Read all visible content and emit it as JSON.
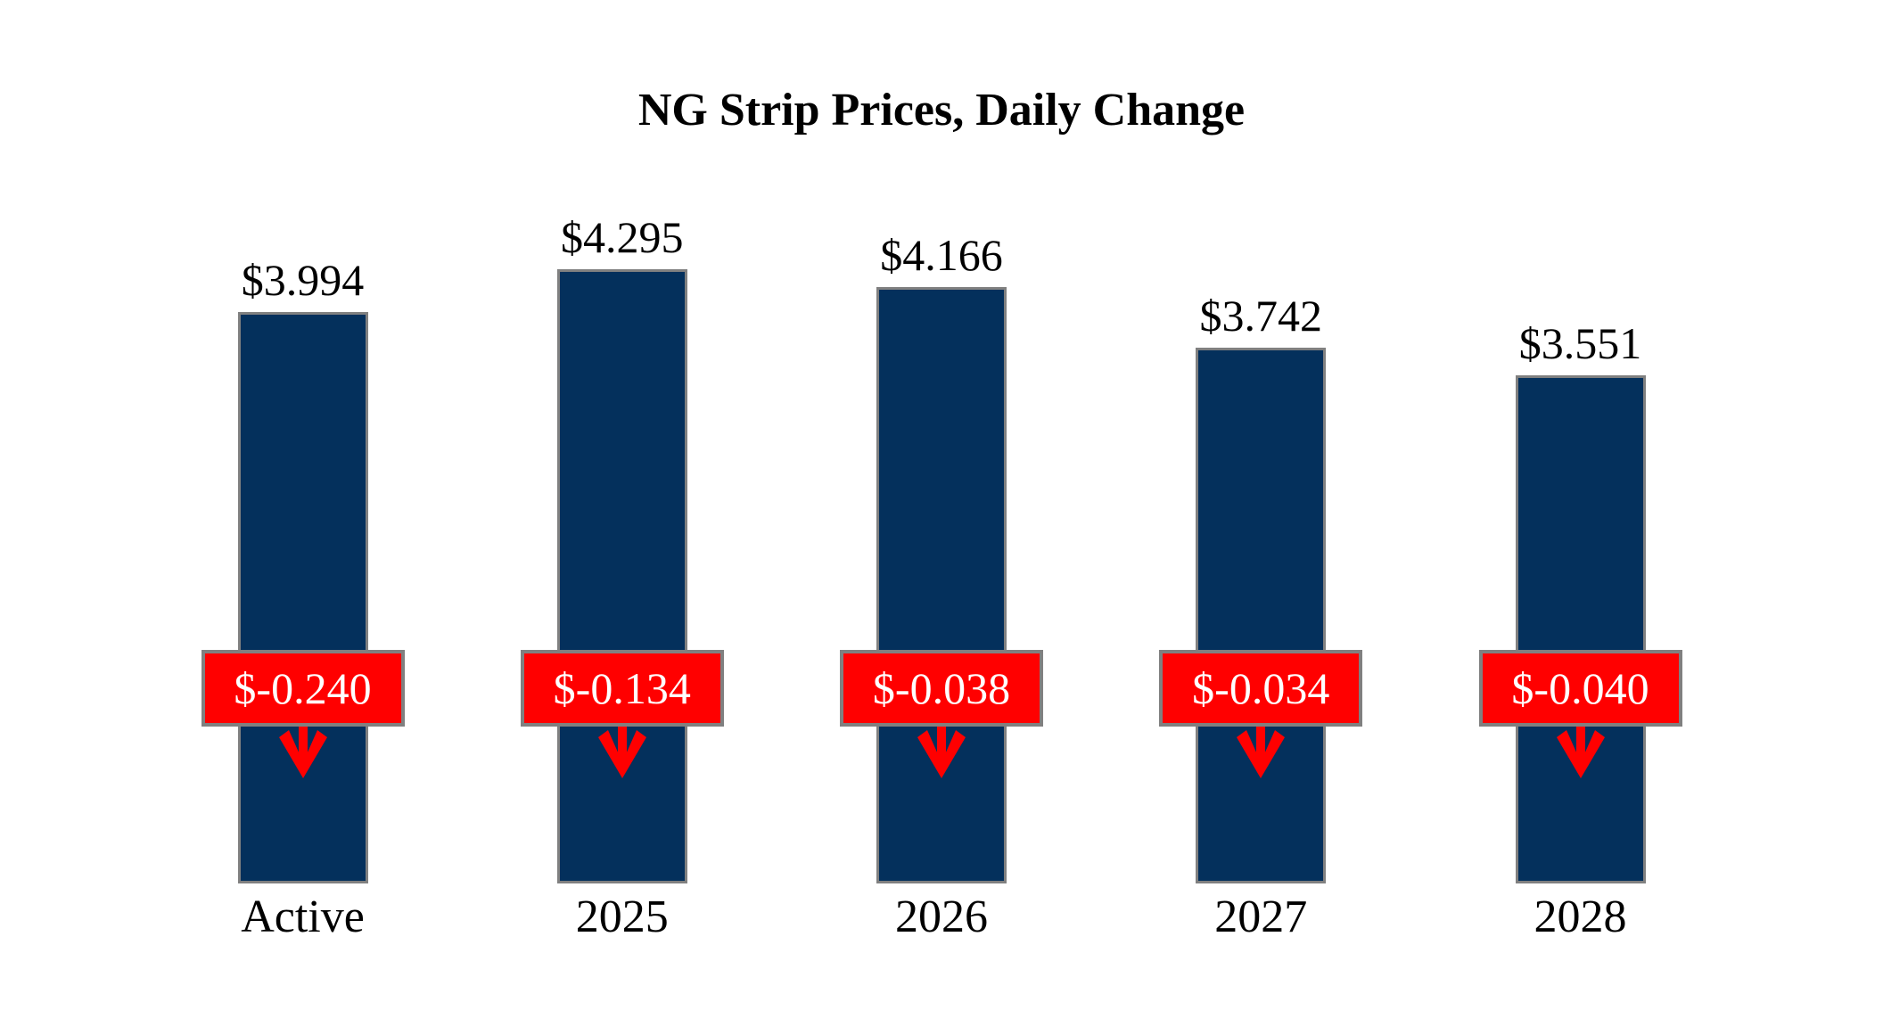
{
  "title": "NG Strip Prices, Daily Change",
  "chart_data": {
    "type": "bar",
    "title": "NG Strip Prices, Daily Change",
    "xlabel": "",
    "ylabel": "",
    "categories": [
      "Active",
      "2025",
      "2026",
      "2027",
      "2028"
    ],
    "values": [
      3.994,
      4.295,
      4.166,
      3.742,
      3.551
    ],
    "value_labels": [
      "$3.994",
      "$4.295",
      "$4.166",
      "$3.742",
      "$3.551"
    ],
    "daily_changes": [
      -0.24,
      -0.134,
      -0.038,
      -0.034,
      -0.04
    ],
    "change_labels": [
      "$-0.240",
      "$-0.134",
      "$-0.038",
      "$-0.034",
      "$-0.040"
    ],
    "change_direction": "down",
    "ylim": [
      0,
      4.295
    ],
    "grid": false,
    "legend": "none",
    "colors": {
      "bar_fill": "#04305C",
      "bar_border": "#808080",
      "badge_fill": "#FF0000",
      "badge_border": "#808080",
      "badge_text": "#FFFFFF",
      "arrow": "#FF0000",
      "label_text": "#000000",
      "background": "#FFFFFF"
    }
  }
}
